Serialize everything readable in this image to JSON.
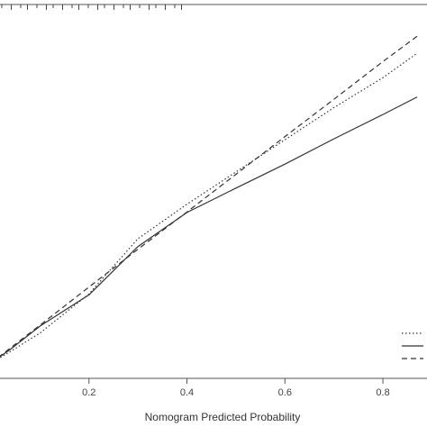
{
  "chart_data": {
    "type": "line",
    "title": "",
    "xlabel": "Nomogram Predicted Probability",
    "ylabel": "",
    "xlim": [
      0.0,
      0.89
    ],
    "ylim": [
      0.0,
      0.74
    ],
    "x_ticks": [
      {
        "value": 0.2,
        "label": "0.2"
      },
      {
        "value": 0.4,
        "label": "0.4"
      },
      {
        "value": 0.6,
        "label": "0.6"
      },
      {
        "value": 0.8,
        "label": "0.8"
      }
    ],
    "grid": false,
    "legend_position": "bottom-right",
    "series": [
      {
        "style": "dotted",
        "x": [
          0.0,
          0.04,
          0.1,
          0.2,
          0.3,
          0.4,
          0.5,
          0.6,
          0.7,
          0.8,
          0.87
        ],
        "y": [
          0.01,
          0.035,
          0.075,
          0.16,
          0.28,
          0.355,
          0.425,
          0.495,
          0.565,
          0.63,
          0.683
        ]
      },
      {
        "style": "solid",
        "x": [
          0.0,
          0.04,
          0.1,
          0.2,
          0.3,
          0.4,
          0.5,
          0.6,
          0.7,
          0.8,
          0.87
        ],
        "y": [
          0.01,
          0.04,
          0.09,
          0.158,
          0.263,
          0.337,
          0.39,
          0.442,
          0.497,
          0.55,
          0.588
        ]
      },
      {
        "style": "dashed",
        "x": [
          0.0,
          0.1,
          0.2,
          0.3,
          0.4,
          0.5,
          0.6,
          0.7,
          0.8,
          0.87
        ],
        "y": [
          0.01,
          0.092,
          0.175,
          0.257,
          0.338,
          0.42,
          0.502,
          0.583,
          0.665,
          0.72
        ]
      }
    ],
    "rug_marks": 22
  }
}
